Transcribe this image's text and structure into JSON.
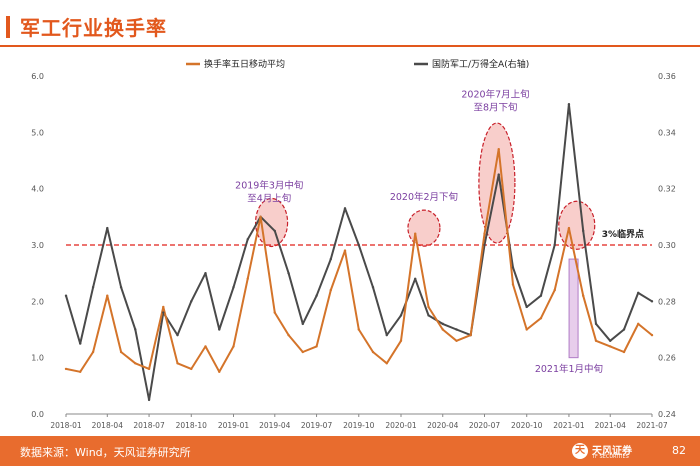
{
  "page": {
    "title": "军工行业换手率",
    "source": "数据来源：Wind，天风证券研究所",
    "page_number": "82",
    "logo_text": "天风证券",
    "logo_mark": "天",
    "logo_sub": "TF SECURITIES"
  },
  "colors": {
    "accent": "#E2581D",
    "footer": "#E86C2E",
    "series1": "#D4742A",
    "series2": "#4A4A4A",
    "threshold": "#E0201B",
    "annotation": "#7B3FA0",
    "highlight_fill": "#F2A6A0",
    "highlight_stroke": "#C8202A",
    "bar_fill": "#E7CDEB",
    "bar_stroke": "#B07CC6"
  },
  "chart_data": {
    "type": "line",
    "x_tick_labels": [
      "2018-01",
      "2018-04",
      "2018-07",
      "2018-10",
      "2019-01",
      "2019-04",
      "2019-07",
      "2019-10",
      "2020-01",
      "2020-04",
      "2020-07",
      "2020-10",
      "2021-01",
      "2021-04",
      "2021-07"
    ],
    "x_range": [
      "2018-01",
      "2021-07"
    ],
    "y_left": {
      "range": [
        0,
        6
      ],
      "ticks": [
        "0.0",
        "1.0",
        "2.0",
        "3.0",
        "4.0",
        "5.0",
        "6.0"
      ]
    },
    "y_right": {
      "range": [
        0.24,
        0.36
      ],
      "ticks": [
        "0.24",
        "0.26",
        "0.28",
        "0.30",
        "0.32",
        "0.34",
        "0.36"
      ]
    },
    "grid": false,
    "legend_position": "top",
    "series": [
      {
        "name": "换手率五日移动平均",
        "axis": "left",
        "x": [
          "2018-01",
          "2018-02",
          "2018-03",
          "2018-04",
          "2018-05",
          "2018-06",
          "2018-07",
          "2018-08",
          "2018-09",
          "2018-10",
          "2018-11",
          "2018-12",
          "2019-01",
          "2019-02",
          "2019-03",
          "2019-04",
          "2019-05",
          "2019-06",
          "2019-07",
          "2019-08",
          "2019-09",
          "2019-10",
          "2019-11",
          "2019-12",
          "2020-01",
          "2020-02",
          "2020-03",
          "2020-04",
          "2020-05",
          "2020-06",
          "2020-07",
          "2020-08",
          "2020-09",
          "2020-10",
          "2020-11",
          "2020-12",
          "2021-01",
          "2021-02",
          "2021-03",
          "2021-04",
          "2021-05",
          "2021-06",
          "2021-07"
        ],
        "values": [
          0.8,
          0.75,
          1.1,
          2.1,
          1.1,
          0.9,
          0.8,
          1.9,
          0.9,
          0.8,
          1.2,
          0.75,
          1.2,
          2.4,
          3.5,
          1.8,
          1.4,
          1.1,
          1.2,
          2.2,
          2.9,
          1.5,
          1.1,
          0.9,
          1.3,
          3.2,
          1.9,
          1.5,
          1.3,
          1.4,
          3.2,
          4.7,
          2.3,
          1.5,
          1.7,
          2.2,
          3.3,
          2.1,
          1.3,
          1.2,
          1.1,
          1.6,
          1.4
        ]
      },
      {
        "name": "国防军工/万得全A(右轴)",
        "axis": "right",
        "x": [
          "2018-01",
          "2018-02",
          "2018-03",
          "2018-04",
          "2018-05",
          "2018-06",
          "2018-07",
          "2018-08",
          "2018-09",
          "2018-10",
          "2018-11",
          "2018-12",
          "2019-01",
          "2019-02",
          "2019-03",
          "2019-04",
          "2019-05",
          "2019-06",
          "2019-07",
          "2019-08",
          "2019-09",
          "2019-10",
          "2019-11",
          "2019-12",
          "2020-01",
          "2020-02",
          "2020-03",
          "2020-04",
          "2020-05",
          "2020-06",
          "2020-07",
          "2020-08",
          "2020-09",
          "2020-10",
          "2020-11",
          "2020-12",
          "2021-01",
          "2021-02",
          "2021-03",
          "2021-04",
          "2021-05",
          "2021-06",
          "2021-07"
        ],
        "values": [
          0.282,
          0.265,
          0.285,
          0.306,
          0.285,
          0.27,
          0.245,
          0.276,
          0.268,
          0.28,
          0.29,
          0.27,
          0.285,
          0.302,
          0.31,
          0.305,
          0.29,
          0.272,
          0.282,
          0.295,
          0.313,
          0.3,
          0.285,
          0.268,
          0.275,
          0.288,
          0.275,
          0.272,
          0.27,
          0.268,
          0.3,
          0.325,
          0.292,
          0.278,
          0.282,
          0.3,
          0.35,
          0.305,
          0.272,
          0.266,
          0.27,
          0.283,
          0.28
        ]
      }
    ],
    "threshold": {
      "value": 3.0,
      "label": "3%临界点"
    },
    "annotations": [
      {
        "lines": [
          "2019年3月中旬",
          "至4月上旬"
        ],
        "x": "2019-03-20",
        "y": 3.4
      },
      {
        "lines": [
          "2020年2月下旬"
        ],
        "x": "2020-02-20",
        "y": 3.3
      },
      {
        "lines": [
          "2020年7月上旬",
          "至8月下旬"
        ],
        "x": "2020-07-25",
        "y": 4.2
      },
      {
        "lines": [
          "2021年1月中旬"
        ],
        "x": "2021-01-15",
        "y": 3.3
      }
    ]
  }
}
